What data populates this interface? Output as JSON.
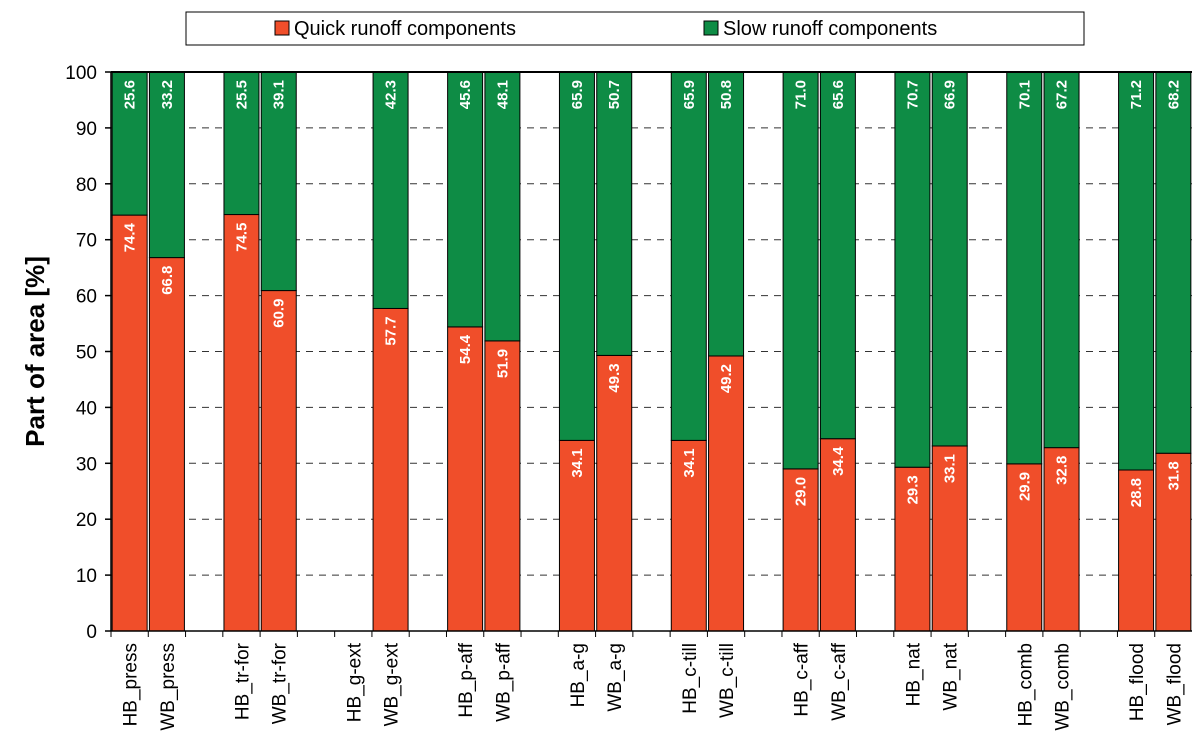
{
  "colors": {
    "quick": "#F04E2A",
    "slow": "#0E8C45",
    "grid": "#333333"
  },
  "chart_data": {
    "type": "bar",
    "stacked": true,
    "ylabel": "Part of area [%]",
    "xlabel": "",
    "title": "",
    "ylim": [
      0,
      100
    ],
    "yticks": [
      0,
      10,
      20,
      30,
      40,
      50,
      60,
      70,
      80,
      90,
      100
    ],
    "grid": "dashed-horizontal",
    "legend": "top",
    "categories": [
      "HB_press",
      "WB_press",
      "",
      "HB_tr-for",
      "WB_tr-for",
      "",
      "HB_g-ext",
      "WB_g-ext",
      "",
      "HB_p-aff",
      "WB_p-aff",
      "",
      "HB_a-g",
      "WB_a-g",
      "",
      "HB_c-till",
      "WB_c-till",
      "",
      "HB_c-aff",
      "WB_c-aff",
      "",
      "HB_nat",
      "WB_nat",
      "",
      "HB_comb",
      "WB_comb",
      "",
      "HB_flood",
      "WB_flood"
    ],
    "series": [
      {
        "name": "Quick runoff components",
        "values": [
          74.4,
          66.8,
          null,
          74.5,
          60.9,
          null,
          null,
          57.7,
          null,
          54.4,
          51.9,
          null,
          34.1,
          49.3,
          null,
          34.1,
          49.2,
          null,
          29.0,
          34.4,
          null,
          29.3,
          33.1,
          null,
          29.9,
          32.8,
          null,
          28.8,
          31.8
        ],
        "labels": [
          "74.4",
          "66.8",
          null,
          "74.5",
          "60.9",
          null,
          null,
          "57.7",
          null,
          "54.4",
          "51.9",
          null,
          "34.1",
          "49.3",
          null,
          "34.1",
          "49.2",
          null,
          "29.0",
          "34.4",
          null,
          "29.3",
          "33.1",
          null,
          "29.9",
          "32.8",
          null,
          "28.8",
          "31.8"
        ]
      },
      {
        "name": "Slow runoff components",
        "values": [
          25.6,
          33.2,
          null,
          25.5,
          39.1,
          null,
          null,
          42.3,
          null,
          45.6,
          48.1,
          null,
          65.9,
          50.7,
          null,
          65.9,
          50.8,
          null,
          71.0,
          65.6,
          null,
          70.7,
          66.9,
          null,
          70.1,
          67.2,
          null,
          71.2,
          68.2
        ],
        "labels": [
          "25.6",
          "33.2",
          null,
          "25.5",
          "39.1",
          null,
          null,
          "42.3",
          null,
          "45.6",
          "48.1",
          null,
          "65.9",
          "50.7",
          null,
          "65.9",
          "50.8",
          null,
          "71.0",
          "65.6",
          null,
          "70.7",
          "66.9",
          null,
          "70.1",
          "67.2",
          null,
          "71.2",
          "68.2"
        ]
      }
    ]
  }
}
